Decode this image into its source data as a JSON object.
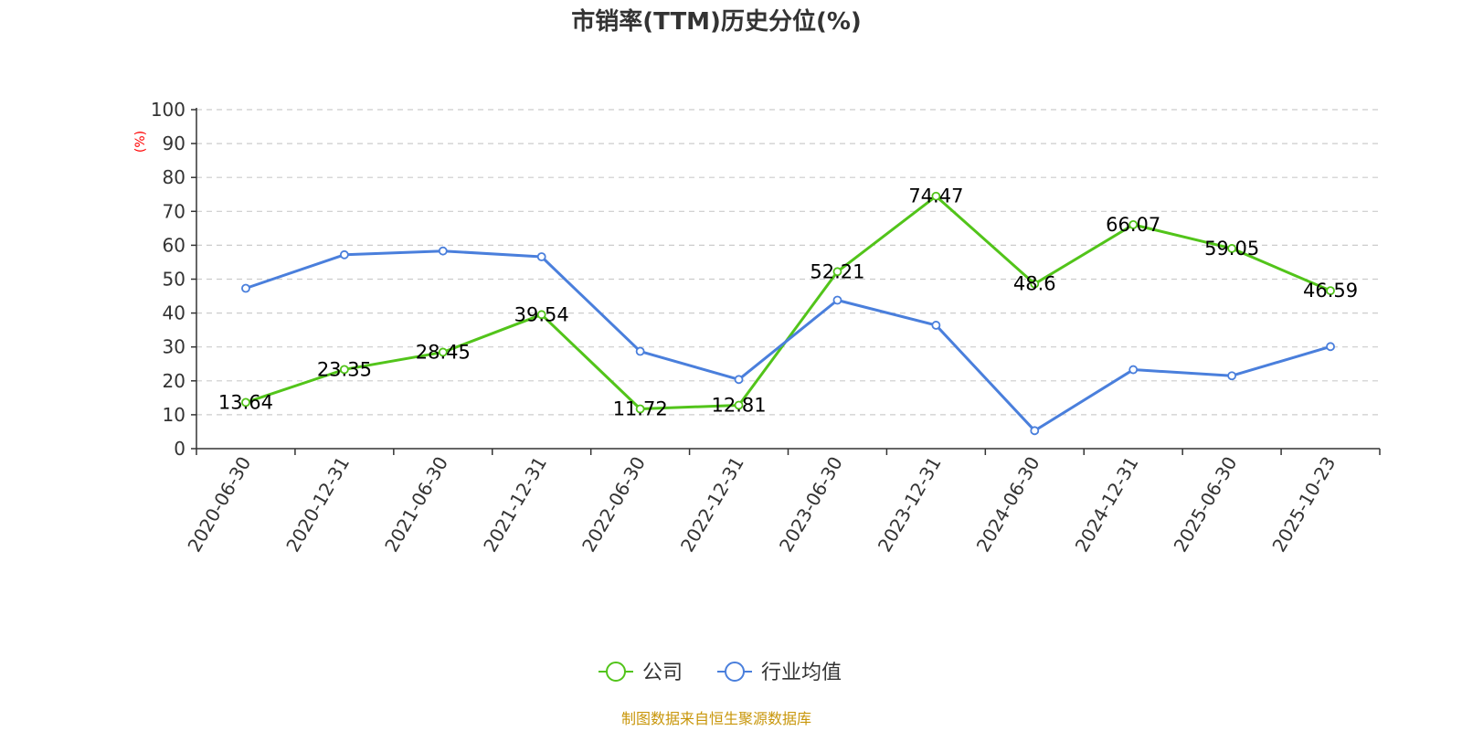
{
  "chart_data": {
    "type": "line",
    "title": "市销率(TTM)历史分位(%)",
    "ylabel": "(%)",
    "xlabel": "",
    "ylim": [
      0,
      100
    ],
    "yticks": [
      0,
      10,
      20,
      30,
      40,
      50,
      60,
      70,
      80,
      90,
      100
    ],
    "grid": true,
    "legend_position": "bottom-center",
    "categories": [
      "2020-06-30",
      "2020-12-31",
      "2021-06-30",
      "2021-12-31",
      "2022-06-30",
      "2022-12-31",
      "2023-06-30",
      "2023-12-31",
      "2024-06-30",
      "2024-12-31",
      "2025-06-30",
      "2025-10-23"
    ],
    "series": [
      {
        "name": "公司",
        "color": "#52c41a",
        "show_labels": true,
        "values": [
          13.64,
          23.35,
          28.45,
          39.54,
          11.72,
          12.81,
          52.21,
          74.47,
          48.6,
          66.07,
          59.05,
          46.59
        ]
      },
      {
        "name": "行业均值",
        "color": "#4a7fdc",
        "show_labels": false,
        "values": [
          47.3,
          57.2,
          58.3,
          56.6,
          28.7,
          20.4,
          43.8,
          36.4,
          5.3,
          23.3,
          21.5,
          30.1
        ]
      }
    ]
  },
  "source": "制图数据来自恒生聚源数据库",
  "colors": {
    "text": "#333333",
    "grid": "#cccccc",
    "axis": "#333333",
    "ylabel": "#ff0000",
    "source": "#c8960a"
  }
}
